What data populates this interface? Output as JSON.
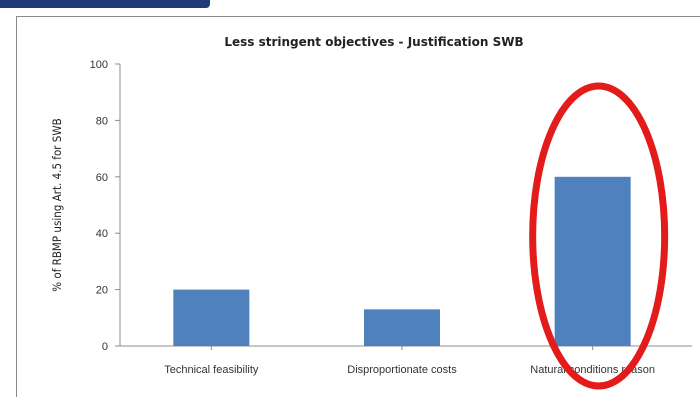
{
  "chart_data": {
    "type": "bar",
    "title": "Less stringent objectives - Justification SWB",
    "xlabel": "",
    "ylabel": "% of RBMP using Art. 4.5 for SWB",
    "categories": [
      "Technical feasibility",
      "Disproportionate costs",
      "Natural conditions reason"
    ],
    "values": [
      20,
      13,
      60
    ],
    "ylim": [
      0,
      100
    ],
    "yticks": [
      0,
      20,
      40,
      60,
      80,
      100
    ],
    "grid": false,
    "legend": "none",
    "bar_color": "#4f81bd",
    "highlight": {
      "shape": "ellipse",
      "color": "#e31b1b",
      "category_index": 2
    }
  }
}
